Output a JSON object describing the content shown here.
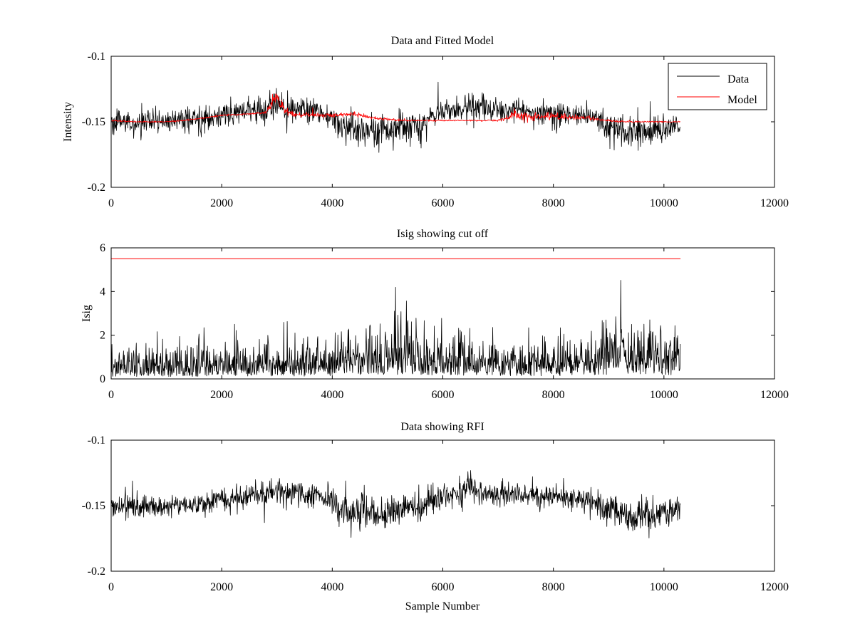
{
  "figure": {
    "background": "#ffffff"
  },
  "legend": {
    "placement": "top-right",
    "entries": [
      {
        "name": "Data",
        "color": "#000000"
      },
      {
        "name": "Model",
        "color": "#ff0000"
      }
    ]
  },
  "chart_data": [
    {
      "type": "line",
      "title": "Data and Fitted Model",
      "xlabel": "",
      "ylabel": "Intensity",
      "xlim": [
        0,
        12000
      ],
      "ylim": [
        -0.2,
        -0.1
      ],
      "xticks": [
        "0",
        "2000",
        "4000",
        "6000",
        "8000",
        "10000",
        "12000"
      ],
      "yticks": [
        "-0.2",
        "-0.15",
        "-0.1"
      ],
      "grid": false,
      "legend": "top-right",
      "series": [
        {
          "name": "Data",
          "color": "#000000",
          "x": [
            0,
            500,
            1000,
            1500,
            2000,
            2500,
            2800,
            3000,
            3200,
            3500,
            3800,
            4000,
            4200,
            4500,
            4800,
            5000,
            5300,
            5600,
            5800,
            6000,
            6300,
            6500,
            6800,
            7000,
            7500,
            8000,
            8500,
            8800,
            9000,
            9300,
            9600,
            9800,
            10000,
            10300
          ],
          "values": [
            -0.15,
            -0.151,
            -0.15,
            -0.149,
            -0.145,
            -0.142,
            -0.14,
            -0.138,
            -0.14,
            -0.141,
            -0.143,
            -0.147,
            -0.154,
            -0.156,
            -0.158,
            -0.155,
            -0.151,
            -0.153,
            -0.145,
            -0.142,
            -0.141,
            -0.138,
            -0.14,
            -0.141,
            -0.142,
            -0.143,
            -0.144,
            -0.148,
            -0.155,
            -0.158,
            -0.156,
            -0.157,
            -0.155,
            -0.153
          ],
          "noise": [
            0.008,
            0.008,
            0.008,
            0.009,
            0.009,
            0.009,
            0.009,
            0.009,
            0.009,
            0.008,
            0.008,
            0.009,
            0.012,
            0.012,
            0.013,
            0.01,
            0.01,
            0.011,
            0.009,
            0.009,
            0.009,
            0.01,
            0.008,
            0.008,
            0.008,
            0.008,
            0.008,
            0.009,
            0.012,
            0.012,
            0.012,
            0.011,
            0.01,
            0.009
          ]
        },
        {
          "name": "Model",
          "color": "#ff0000",
          "x": [
            0,
            500,
            1000,
            1300,
            1700,
            2000,
            2500,
            2800,
            2900,
            3000,
            3050,
            3150,
            3300,
            3600,
            4000,
            4400,
            4700,
            5000,
            5300,
            5600,
            6000,
            6500,
            7000,
            7200,
            7300,
            7400,
            7600,
            8000,
            8500,
            8800,
            9000,
            9300,
            9600,
            10000,
            10300
          ],
          "values": [
            -0.149,
            -0.15,
            -0.15,
            -0.149,
            -0.147,
            -0.145,
            -0.144,
            -0.143,
            -0.137,
            -0.131,
            -0.136,
            -0.141,
            -0.144,
            -0.145,
            -0.145,
            -0.144,
            -0.147,
            -0.148,
            -0.149,
            -0.149,
            -0.149,
            -0.149,
            -0.149,
            -0.147,
            -0.143,
            -0.146,
            -0.146,
            -0.146,
            -0.147,
            -0.148,
            -0.149,
            -0.15,
            -0.15,
            -0.15,
            -0.15
          ],
          "noise": [
            0.0005,
            0.0005,
            0.0005,
            0.0005,
            0.0005,
            0.0005,
            0.0005,
            0.001,
            0.004,
            0.005,
            0.004,
            0.003,
            0.002,
            0.0015,
            0.0015,
            0.0015,
            0.001,
            0.0008,
            0.0008,
            0.0005,
            0.0005,
            0.0005,
            0.0005,
            0.002,
            0.004,
            0.003,
            0.0025,
            0.0025,
            0.002,
            0.0015,
            0.001,
            0.0005,
            0.0005,
            0.0005,
            0.0005
          ]
        }
      ]
    },
    {
      "type": "line",
      "title": "Isig showing cut off",
      "xlabel": "",
      "ylabel": "Isig",
      "xlim": [
        0,
        12000
      ],
      "ylim": [
        0,
        6
      ],
      "xticks": [
        "0",
        "2000",
        "4000",
        "6000",
        "8000",
        "10000",
        "12000"
      ],
      "yticks": [
        "0",
        "2",
        "4",
        "6"
      ],
      "grid": false,
      "series": [
        {
          "color": "#000000",
          "x": [
            0,
            500,
            1000,
            1500,
            2000,
            2500,
            3000,
            3500,
            4000,
            4300,
            4500,
            4700,
            4900,
            5200,
            5500,
            5800,
            6000,
            6500,
            7000,
            7500,
            8000,
            8500,
            8800,
            9000,
            9300,
            9700,
            10000,
            10300
          ],
          "values": [
            0.7,
            0.7,
            0.7,
            0.75,
            0.8,
            0.8,
            0.85,
            0.8,
            0.8,
            1.4,
            1.1,
            1.5,
            1.2,
            1.3,
            1.2,
            1.0,
            1.0,
            1.1,
            0.9,
            0.9,
            0.9,
            0.9,
            1.1,
            1.4,
            1.5,
            1.4,
            1.2,
            1.0
          ],
          "noise": [
            0.7,
            0.7,
            0.7,
            0.8,
            0.8,
            0.8,
            0.85,
            0.8,
            0.8,
            1.3,
            1.0,
            1.4,
            1.1,
            1.2,
            1.1,
            0.9,
            0.9,
            1.0,
            0.8,
            0.8,
            0.8,
            0.8,
            1.0,
            1.3,
            1.4,
            1.3,
            1.1,
            0.9
          ],
          "clip": [
            0,
            5.1
          ]
        },
        {
          "color": "#ff0000",
          "x": [
            0,
            10300
          ],
          "values": [
            5.5,
            5.5
          ],
          "noise": [
            0,
            0
          ]
        }
      ]
    },
    {
      "type": "line",
      "title": "Data showing RFI",
      "xlabel": "Sample Number",
      "ylabel": "",
      "xlim": [
        0,
        12000
      ],
      "ylim": [
        -0.2,
        -0.1
      ],
      "xticks": [
        "0",
        "2000",
        "4000",
        "6000",
        "8000",
        "10000",
        "12000"
      ],
      "yticks": [
        "-0.2",
        "-0.15",
        "-0.1"
      ],
      "grid": false,
      "series": [
        {
          "color": "#000000",
          "x": [
            0,
            500,
            1000,
            1500,
            2000,
            2500,
            2800,
            3000,
            3200,
            3500,
            3800,
            4000,
            4200,
            4500,
            4800,
            5000,
            5300,
            5600,
            5800,
            6000,
            6300,
            6500,
            6800,
            7000,
            7500,
            8000,
            8500,
            8800,
            9000,
            9300,
            9600,
            9800,
            10000,
            10300
          ],
          "values": [
            -0.15,
            -0.151,
            -0.15,
            -0.149,
            -0.145,
            -0.142,
            -0.14,
            -0.138,
            -0.14,
            -0.141,
            -0.143,
            -0.147,
            -0.154,
            -0.156,
            -0.158,
            -0.155,
            -0.151,
            -0.153,
            -0.145,
            -0.142,
            -0.141,
            -0.138,
            -0.14,
            -0.141,
            -0.142,
            -0.143,
            -0.144,
            -0.148,
            -0.155,
            -0.158,
            -0.156,
            -0.157,
            -0.155,
            -0.153
          ],
          "noise": [
            0.008,
            0.008,
            0.008,
            0.009,
            0.009,
            0.009,
            0.009,
            0.009,
            0.009,
            0.008,
            0.008,
            0.009,
            0.012,
            0.012,
            0.013,
            0.01,
            0.01,
            0.011,
            0.009,
            0.009,
            0.009,
            0.01,
            0.008,
            0.008,
            0.008,
            0.008,
            0.008,
            0.009,
            0.012,
            0.012,
            0.012,
            0.011,
            0.01,
            0.009
          ]
        }
      ]
    }
  ]
}
